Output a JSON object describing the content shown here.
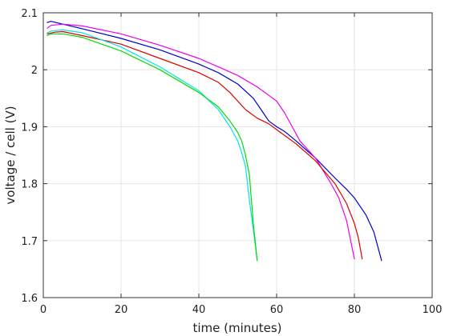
{
  "chart_data": {
    "type": "line",
    "title": "",
    "xlabel": "time (minutes)",
    "ylabel": "voltage / cell (V)",
    "xlim": [
      0,
      100
    ],
    "ylim": [
      1.6,
      2.1
    ],
    "xticks": [
      0,
      20,
      40,
      60,
      80,
      100
    ],
    "yticks": [
      1.6,
      1.7,
      1.8,
      1.9,
      2,
      2.1
    ],
    "xtick_labels": [
      "0",
      "20",
      "40",
      "60",
      "80",
      "100"
    ],
    "ytick_labels": [
      "1.6",
      "1.7",
      "1.8",
      "1.9",
      "2",
      "2.1"
    ],
    "grid": true,
    "legend": "none",
    "series": [
      {
        "color": "#0000cc",
        "x": [
          1,
          2,
          5,
          10,
          20,
          30,
          40,
          45,
          50,
          54,
          56,
          58,
          60,
          62,
          65,
          70,
          75,
          78,
          80,
          83,
          85,
          87
        ],
        "y": [
          2.083,
          2.085,
          2.08,
          2.072,
          2.055,
          2.035,
          2.01,
          1.995,
          1.975,
          1.95,
          1.93,
          1.91,
          1.9,
          1.892,
          1.875,
          1.845,
          1.81,
          1.79,
          1.775,
          1.745,
          1.715,
          1.665
        ]
      },
      {
        "color": "#ee00ee",
        "x": [
          1,
          2,
          5,
          10,
          20,
          30,
          40,
          45,
          50,
          55,
          58,
          60,
          62,
          64,
          66,
          70,
          74,
          76,
          78,
          80
        ],
        "y": [
          2.073,
          2.078,
          2.08,
          2.077,
          2.063,
          2.043,
          2.02,
          2.005,
          1.99,
          1.97,
          1.955,
          1.945,
          1.925,
          1.9,
          1.875,
          1.845,
          1.8,
          1.775,
          1.735,
          1.668
        ]
      },
      {
        "color": "#dd0000",
        "x": [
          1,
          3,
          5,
          10,
          20,
          30,
          40,
          45,
          48,
          50,
          52,
          55,
          58,
          60,
          65,
          70,
          75,
          78,
          80,
          81,
          82
        ],
        "y": [
          2.063,
          2.066,
          2.067,
          2.06,
          2.045,
          2.02,
          1.995,
          1.978,
          1.96,
          1.945,
          1.93,
          1.915,
          1.905,
          1.895,
          1.87,
          1.84,
          1.8,
          1.765,
          1.73,
          1.705,
          1.668
        ]
      },
      {
        "color": "#00e5e5",
        "x": [
          1,
          2,
          5,
          10,
          20,
          30,
          40,
          45,
          48,
          50,
          51,
          52,
          53,
          54,
          55
        ],
        "y": [
          2.065,
          2.068,
          2.07,
          2.065,
          2.04,
          2.005,
          1.963,
          1.93,
          1.9,
          1.875,
          1.855,
          1.83,
          1.77,
          1.72,
          1.665
        ]
      },
      {
        "color": "#00dd00",
        "x": [
          1,
          2,
          5,
          10,
          20,
          30,
          40,
          45,
          48,
          50,
          51,
          52,
          53,
          54,
          55
        ],
        "y": [
          2.06,
          2.063,
          2.063,
          2.057,
          2.033,
          2.0,
          1.96,
          1.935,
          1.91,
          1.89,
          1.875,
          1.85,
          1.815,
          1.73,
          1.665
        ]
      }
    ]
  }
}
